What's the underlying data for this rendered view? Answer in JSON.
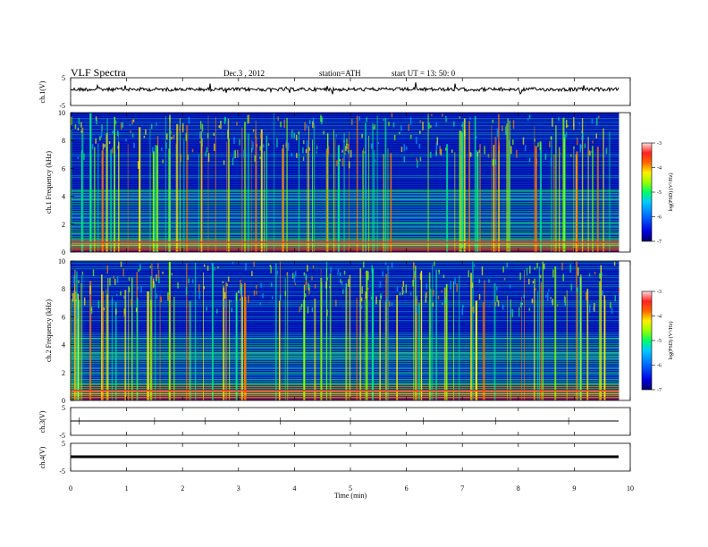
{
  "header": {
    "title": "VLF  Spectra",
    "date": "Dec.3  , 2012",
    "station": "station=ATH",
    "start": "start  UT  =   13: 50: 0"
  },
  "colors": {
    "spectrogram": [
      "#000066",
      "#0000cc",
      "#0044ff",
      "#00aaff",
      "#00ee88",
      "#88ff00",
      "#ffee00",
      "#ff7700",
      "#ff2222",
      "#ff8888",
      "#ffffff"
    ]
  },
  "chart_data": [
    {
      "type": "line",
      "name": "ch1",
      "ylabel": "ch.1(V)",
      "ylim": [
        -5,
        5
      ],
      "yticks": [
        -5,
        5
      ],
      "xlim": [
        0,
        10
      ],
      "description_level": "noisy trace near +0.6 V with short spikes"
    },
    {
      "type": "heatmap",
      "name": "ch1-spectrogram",
      "ylabel": "ch.1  Frequency  (kHz)",
      "ylim": [
        0,
        10
      ],
      "yticks": [
        0,
        2,
        4,
        6,
        8,
        10
      ],
      "xlim": [
        0,
        9.8
      ],
      "colorbar": {
        "label": "log(PSD) (V²/Hz)",
        "range": [
          -7,
          -3
        ],
        "ticks": [
          -3,
          -4,
          -5,
          -6,
          -7
        ]
      }
    },
    {
      "type": "heatmap",
      "name": "ch2-spectrogram",
      "ylabel": "ch.2  Frequency  (kHz)",
      "ylim": [
        0,
        10
      ],
      "yticks": [
        0,
        2,
        4,
        6,
        8,
        10
      ],
      "xlim": [
        0,
        9.8
      ],
      "colorbar": {
        "label": "log(PSD) (V²/Hz)",
        "range": [
          -7,
          -3
        ],
        "ticks": [
          -3,
          -4,
          -5,
          -6,
          -7
        ]
      }
    },
    {
      "type": "line",
      "name": "ch3",
      "ylabel": "ch.3(V)",
      "ylim": [
        -5,
        5
      ],
      "yticks": [
        -5,
        5
      ],
      "xlim": [
        0,
        10
      ],
      "level": 0
    },
    {
      "type": "line",
      "name": "ch4",
      "ylabel": "ch.4(V)",
      "ylim": [
        -5,
        5
      ],
      "yticks": [
        -5,
        5
      ],
      "xlim": [
        0,
        10
      ],
      "level": 0
    }
  ],
  "xaxis": {
    "label": "Time  (min)",
    "ticks": [
      0,
      1,
      2,
      3,
      4,
      5,
      6,
      7,
      8,
      9,
      10
    ]
  }
}
